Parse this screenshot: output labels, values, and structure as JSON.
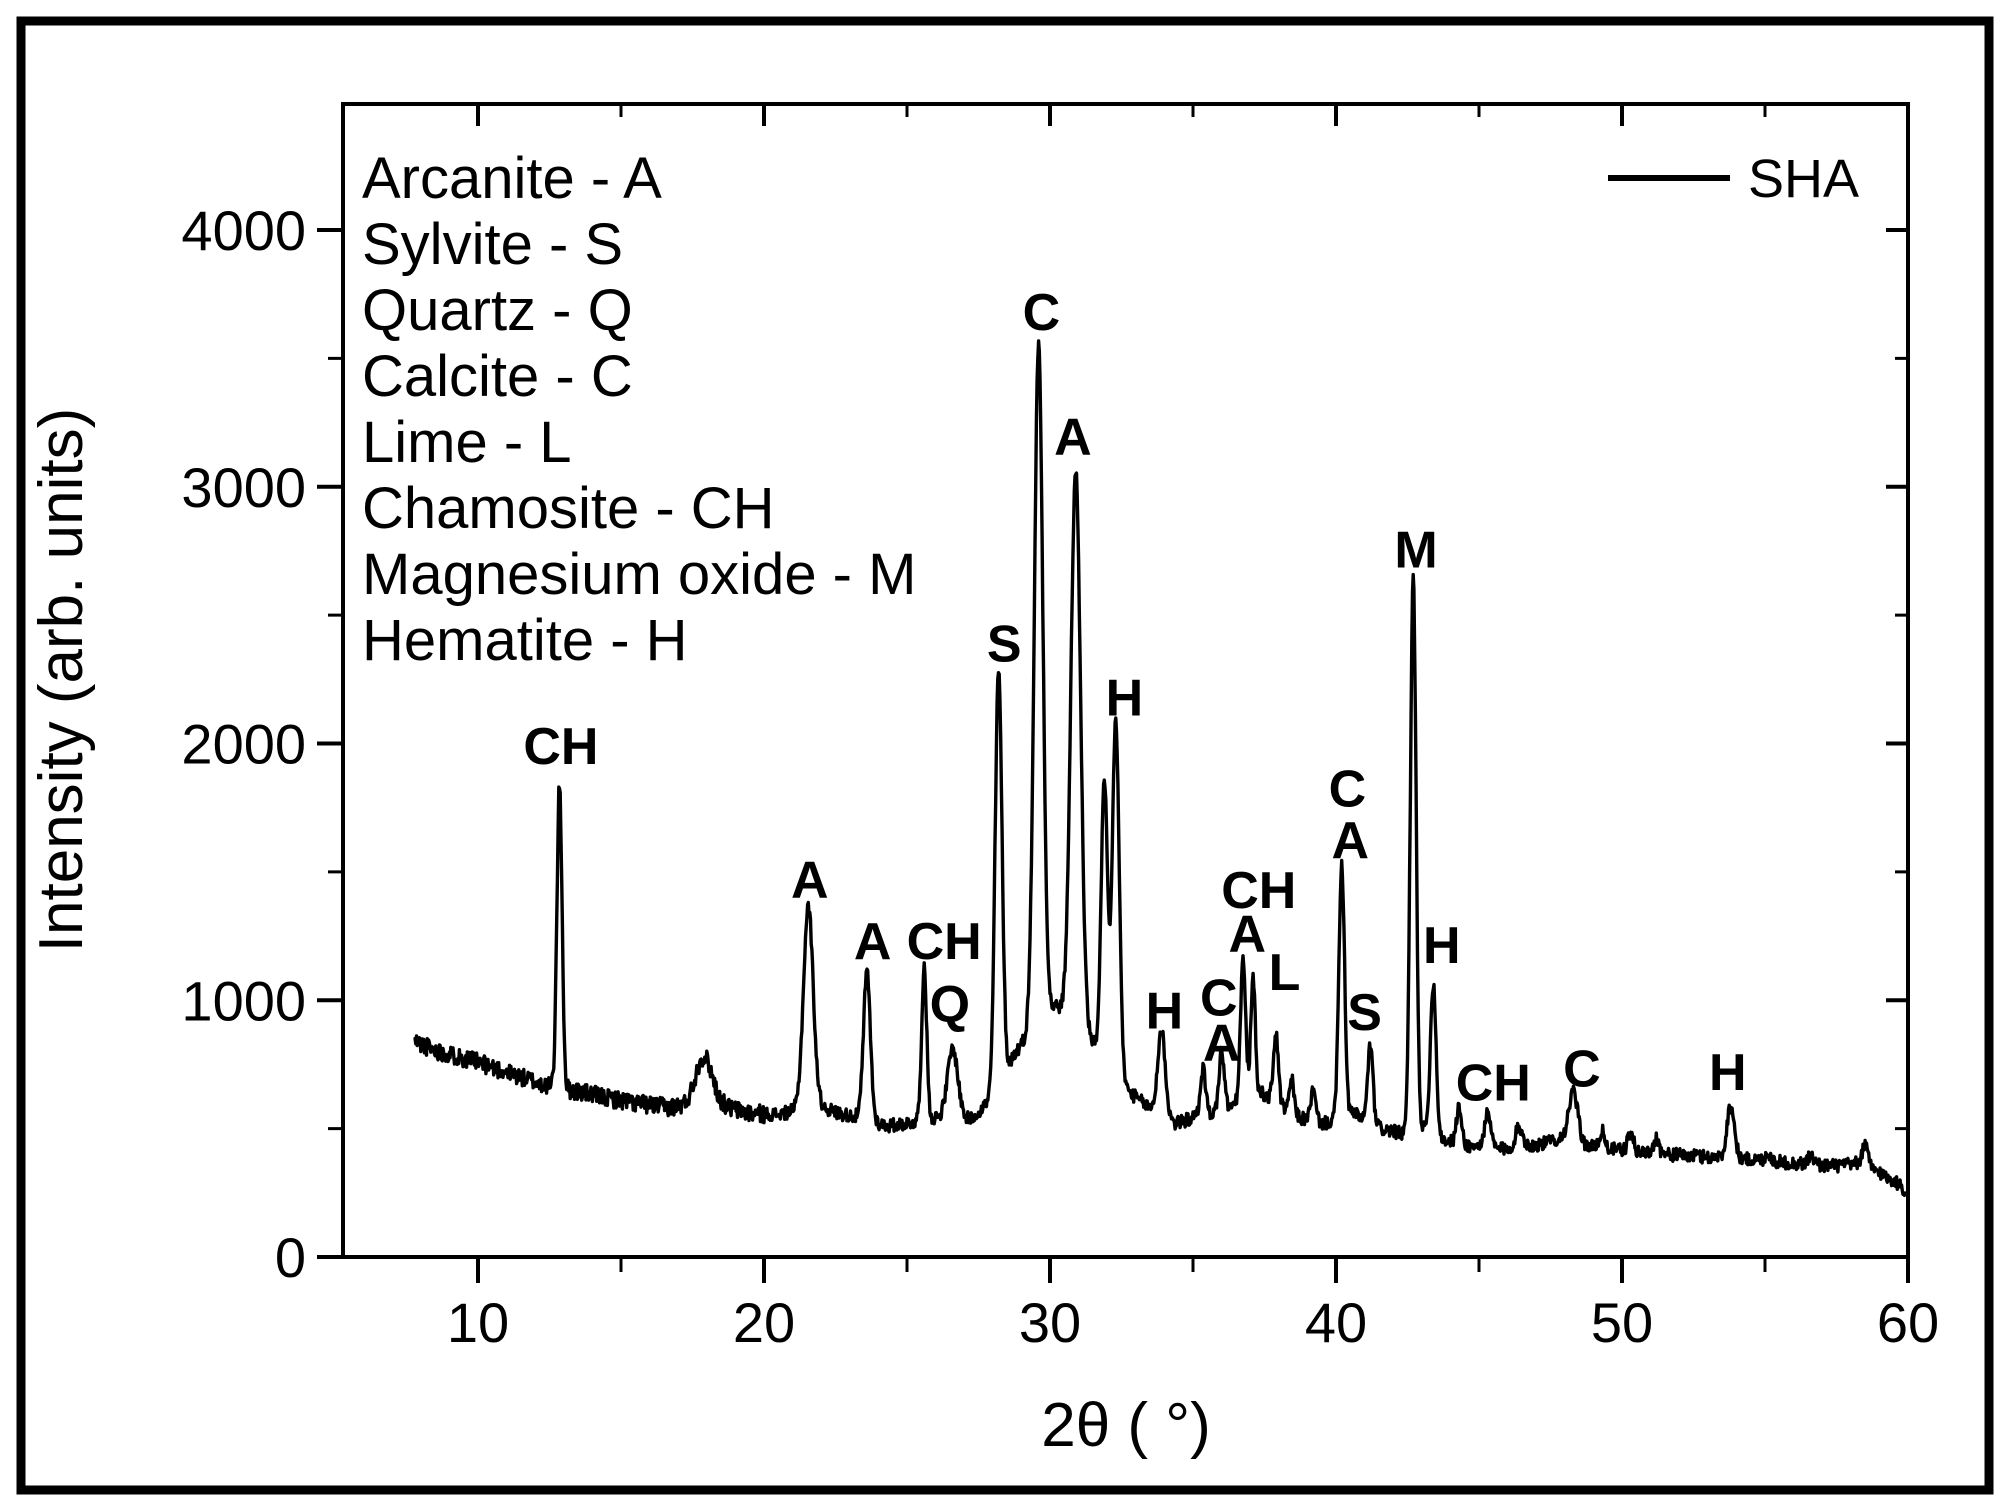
{
  "figure": {
    "background_color": "#ffffff",
    "line_color": "#000000",
    "border_color": "#000000",
    "legend": {
      "label": "SHA"
    },
    "phase_key": [
      "Arcanite - A",
      "Sylvite - S",
      "Quartz - Q",
      "Calcite - C",
      "Lime - L",
      "Chamosite - CH",
      "Magnesium oxide - M",
      "Hematite - H"
    ],
    "x_axis": {
      "title": "2θ ( °)",
      "tick_labels": [
        "10",
        "20",
        "30",
        "40",
        "50",
        "60"
      ],
      "major_ticks": [
        10,
        20,
        30,
        40,
        50,
        60
      ],
      "minor_ticks": [
        15,
        25,
        35,
        45,
        55
      ]
    },
    "y_axis": {
      "title": "Intensity (arb. units)",
      "tick_labels": [
        "0",
        "1000",
        "2000",
        "3000",
        "4000"
      ],
      "major_ticks": [
        0,
        1000,
        2000,
        3000,
        4000
      ],
      "minor_ticks": [
        500,
        1500,
        2500,
        3500
      ]
    }
  },
  "chart_data": {
    "type": "line",
    "series": [
      {
        "name": "SHA"
      }
    ],
    "xlabel": "2θ ( °)",
    "ylabel": "Intensity (arb. units)",
    "xlim": [
      5.3,
      60
    ],
    "ylim": [
      0,
      4490
    ],
    "grid": false,
    "legend_position": "top-right",
    "x_start": 7.8,
    "x_end": 59.9,
    "x_step": 0.025,
    "noise": {
      "amplitude": 26,
      "low_angle_boost": 1.35,
      "low_angle_limit": 20,
      "seed": 11
    },
    "baseline_points": [
      [
        7.8,
        840
      ],
      [
        8.5,
        805
      ],
      [
        9.5,
        775
      ],
      [
        10.5,
        740
      ],
      [
        11.5,
        700
      ],
      [
        12.5,
        665
      ],
      [
        13.5,
        645
      ],
      [
        14.5,
        620
      ],
      [
        15.5,
        600
      ],
      [
        16.5,
        585
      ],
      [
        18.6,
        585
      ],
      [
        19.5,
        560
      ],
      [
        20.5,
        555
      ],
      [
        21.9,
        590
      ],
      [
        22.6,
        560
      ],
      [
        23.3,
        545
      ],
      [
        24.3,
        510
      ],
      [
        25.2,
        525
      ],
      [
        26.1,
        545
      ],
      [
        27.2,
        535
      ],
      [
        28.0,
        620
      ],
      [
        28.7,
        780
      ],
      [
        29.3,
        880
      ],
      [
        30.2,
        980
      ],
      [
        31.3,
        860
      ],
      [
        32.0,
        760
      ],
      [
        32.8,
        640
      ],
      [
        33.5,
        580
      ],
      [
        34.4,
        520
      ],
      [
        35.1,
        545
      ],
      [
        35.7,
        560
      ],
      [
        36.4,
        590
      ],
      [
        37.4,
        640
      ],
      [
        38.1,
        580
      ],
      [
        38.8,
        540
      ],
      [
        39.6,
        520
      ],
      [
        40.6,
        560
      ],
      [
        41.6,
        500
      ],
      [
        42.3,
        480
      ],
      [
        43.0,
        500
      ],
      [
        43.9,
        450
      ],
      [
        44.8,
        430
      ],
      [
        46.0,
        420
      ],
      [
        47.2,
        440
      ],
      [
        48.0,
        470
      ],
      [
        48.9,
        430
      ],
      [
        50.0,
        415
      ],
      [
        51.5,
        400
      ],
      [
        53.0,
        390
      ],
      [
        54.5,
        380
      ],
      [
        56.0,
        365
      ],
      [
        57.5,
        355
      ],
      [
        58.3,
        365
      ],
      [
        59.0,
        330
      ],
      [
        59.6,
        290
      ],
      [
        59.9,
        260
      ]
    ],
    "peaks": [
      {
        "two_theta": 12.85,
        "intensity": 1840,
        "sigma": 0.09,
        "phase": "CH"
      },
      {
        "two_theta": 17.9,
        "intensity": 780,
        "sigma": 0.3,
        "phase": ""
      },
      {
        "two_theta": 21.55,
        "intensity": 1365,
        "sigma": 0.17,
        "phase": "A"
      },
      {
        "two_theta": 23.6,
        "intensity": 1110,
        "sigma": 0.12,
        "phase": "A"
      },
      {
        "two_theta": 25.6,
        "intensity": 1120,
        "sigma": 0.09,
        "phase": "CH"
      },
      {
        "two_theta": 26.6,
        "intensity": 810,
        "sigma": 0.18,
        "phase": "Q"
      },
      {
        "two_theta": 28.2,
        "intensity": 2285,
        "sigma": 0.12,
        "phase": "S"
      },
      {
        "two_theta": 29.6,
        "intensity": 3555,
        "sigma": 0.15,
        "phase": "C"
      },
      {
        "two_theta": 30.9,
        "intensity": 3060,
        "sigma": 0.17,
        "phase": "A"
      },
      {
        "two_theta": 31.9,
        "intensity": 1850,
        "sigma": 0.11,
        "phase": "H"
      },
      {
        "two_theta": 32.3,
        "intensity": 2090,
        "sigma": 0.12,
        "phase": "H"
      },
      {
        "two_theta": 33.9,
        "intensity": 885,
        "sigma": 0.13,
        "phase": "H"
      },
      {
        "two_theta": 35.35,
        "intensity": 735,
        "sigma": 0.09,
        "phase": ""
      },
      {
        "two_theta": 36.0,
        "intensity": 805,
        "sigma": 0.09,
        "phase": "C/A"
      },
      {
        "two_theta": 36.75,
        "intensity": 1155,
        "sigma": 0.09,
        "phase": "CH/A"
      },
      {
        "two_theta": 37.1,
        "intensity": 1085,
        "sigma": 0.08,
        "phase": "CH/A"
      },
      {
        "two_theta": 37.9,
        "intensity": 865,
        "sigma": 0.09,
        "phase": "L"
      },
      {
        "two_theta": 38.45,
        "intensity": 690,
        "sigma": 0.08,
        "phase": ""
      },
      {
        "two_theta": 39.2,
        "intensity": 645,
        "sigma": 0.09,
        "phase": ""
      },
      {
        "two_theta": 40.2,
        "intensity": 1520,
        "sigma": 0.1,
        "phase": "C/A"
      },
      {
        "two_theta": 41.2,
        "intensity": 825,
        "sigma": 0.09,
        "phase": "S"
      },
      {
        "two_theta": 42.7,
        "intensity": 2650,
        "sigma": 0.1,
        "phase": "M"
      },
      {
        "two_theta": 43.4,
        "intensity": 1065,
        "sigma": 0.1,
        "phase": "H"
      },
      {
        "two_theta": 44.3,
        "intensity": 580,
        "sigma": 0.09,
        "phase": ""
      },
      {
        "two_theta": 45.3,
        "intensity": 555,
        "sigma": 0.11,
        "phase": "CH"
      },
      {
        "two_theta": 46.4,
        "intensity": 505,
        "sigma": 0.13,
        "phase": ""
      },
      {
        "two_theta": 48.3,
        "intensity": 645,
        "sigma": 0.15,
        "phase": "C"
      },
      {
        "two_theta": 49.3,
        "intensity": 490,
        "sigma": 0.09,
        "phase": ""
      },
      {
        "two_theta": 50.3,
        "intensity": 480,
        "sigma": 0.1,
        "phase": ""
      },
      {
        "two_theta": 51.2,
        "intensity": 465,
        "sigma": 0.09,
        "phase": ""
      },
      {
        "two_theta": 53.8,
        "intensity": 590,
        "sigma": 0.13,
        "phase": "H"
      },
      {
        "two_theta": 55.1,
        "intensity": 405,
        "sigma": 0.09,
        "phase": ""
      },
      {
        "two_theta": 56.6,
        "intensity": 395,
        "sigma": 0.1,
        "phase": ""
      },
      {
        "two_theta": 58.5,
        "intensity": 435,
        "sigma": 0.1,
        "phase": ""
      }
    ],
    "annotations": [
      {
        "text": "CH",
        "x": 12.9,
        "y": 1990
      },
      {
        "text": "A",
        "x": 21.6,
        "y": 1470
      },
      {
        "text": "A",
        "x": 23.8,
        "y": 1230
      },
      {
        "text": "CH",
        "x": 26.3,
        "y": 1230
      },
      {
        "text": "Q",
        "x": 26.5,
        "y": 985
      },
      {
        "text": "S",
        "x": 28.4,
        "y": 2390
      },
      {
        "text": "C",
        "x": 29.7,
        "y": 3680
      },
      {
        "text": "A",
        "x": 30.8,
        "y": 3195
      },
      {
        "text": "H",
        "x": 32.6,
        "y": 2180
      },
      {
        "text": "H",
        "x": 34.0,
        "y": 960
      },
      {
        "text": "C",
        "x": 35.9,
        "y": 1010
      },
      {
        "text": "A",
        "x": 36.0,
        "y": 835
      },
      {
        "text": "CH",
        "x": 37.3,
        "y": 1430
      },
      {
        "text": "A",
        "x": 36.9,
        "y": 1260
      },
      {
        "text": "L",
        "x": 38.2,
        "y": 1110
      },
      {
        "text": "C",
        "x": 40.4,
        "y": 1825
      },
      {
        "text": "A",
        "x": 40.5,
        "y": 1625
      },
      {
        "text": "S",
        "x": 41.0,
        "y": 955
      },
      {
        "text": "M",
        "x": 42.8,
        "y": 2755
      },
      {
        "text": "H",
        "x": 43.7,
        "y": 1215
      },
      {
        "text": "CH",
        "x": 45.5,
        "y": 680
      },
      {
        "text": "C",
        "x": 48.6,
        "y": 735
      },
      {
        "text": "H",
        "x": 53.7,
        "y": 720
      }
    ]
  }
}
